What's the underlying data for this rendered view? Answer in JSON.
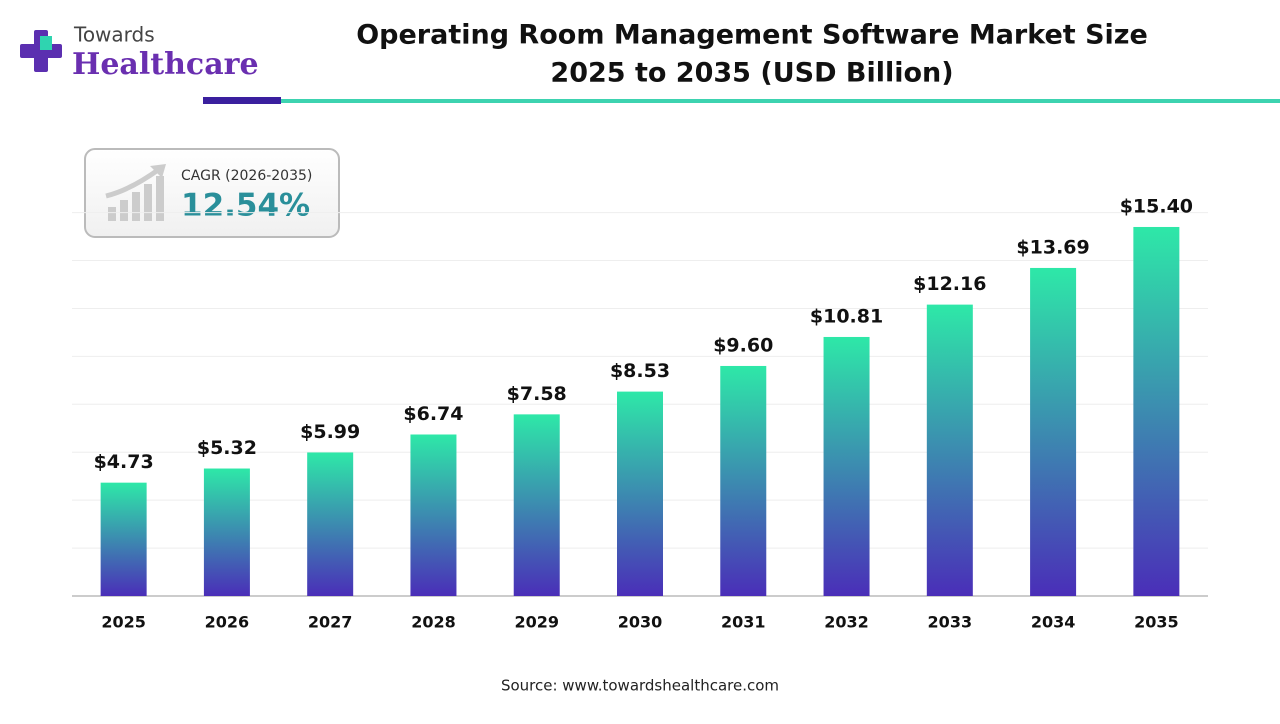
{
  "chart_data": {
    "type": "bar",
    "title": "Operating Room Management Software Market Size",
    "subtitle": "2025 to 2035 (USD Billion)",
    "logo": {
      "line1": "Towards",
      "line2": "Healthcare"
    },
    "cagr": {
      "label": "CAGR (2026-2035)",
      "value": "12.54%"
    },
    "categories": [
      "2025",
      "2026",
      "2027",
      "2028",
      "2029",
      "2030",
      "2031",
      "2032",
      "2033",
      "2034",
      "2035"
    ],
    "values": [
      4.73,
      5.32,
      5.99,
      6.74,
      7.58,
      8.53,
      9.6,
      10.81,
      12.16,
      13.69,
      15.4
    ],
    "value_labels": [
      "$4.73",
      "$5.32",
      "$5.99",
      "$6.74",
      "$7.58",
      "$8.53",
      "$9.60",
      "$10.81",
      "$12.16",
      "$13.69",
      "$15.40"
    ],
    "colors": [
      "#2ee8a8",
      "#4a2eb8"
    ],
    "ylim": [
      0,
      16
    ],
    "yticks": [
      0,
      2,
      4,
      6,
      8,
      10,
      12,
      14,
      16
    ],
    "grid": true,
    "source": "Source: www.towardshealthcare.com"
  }
}
